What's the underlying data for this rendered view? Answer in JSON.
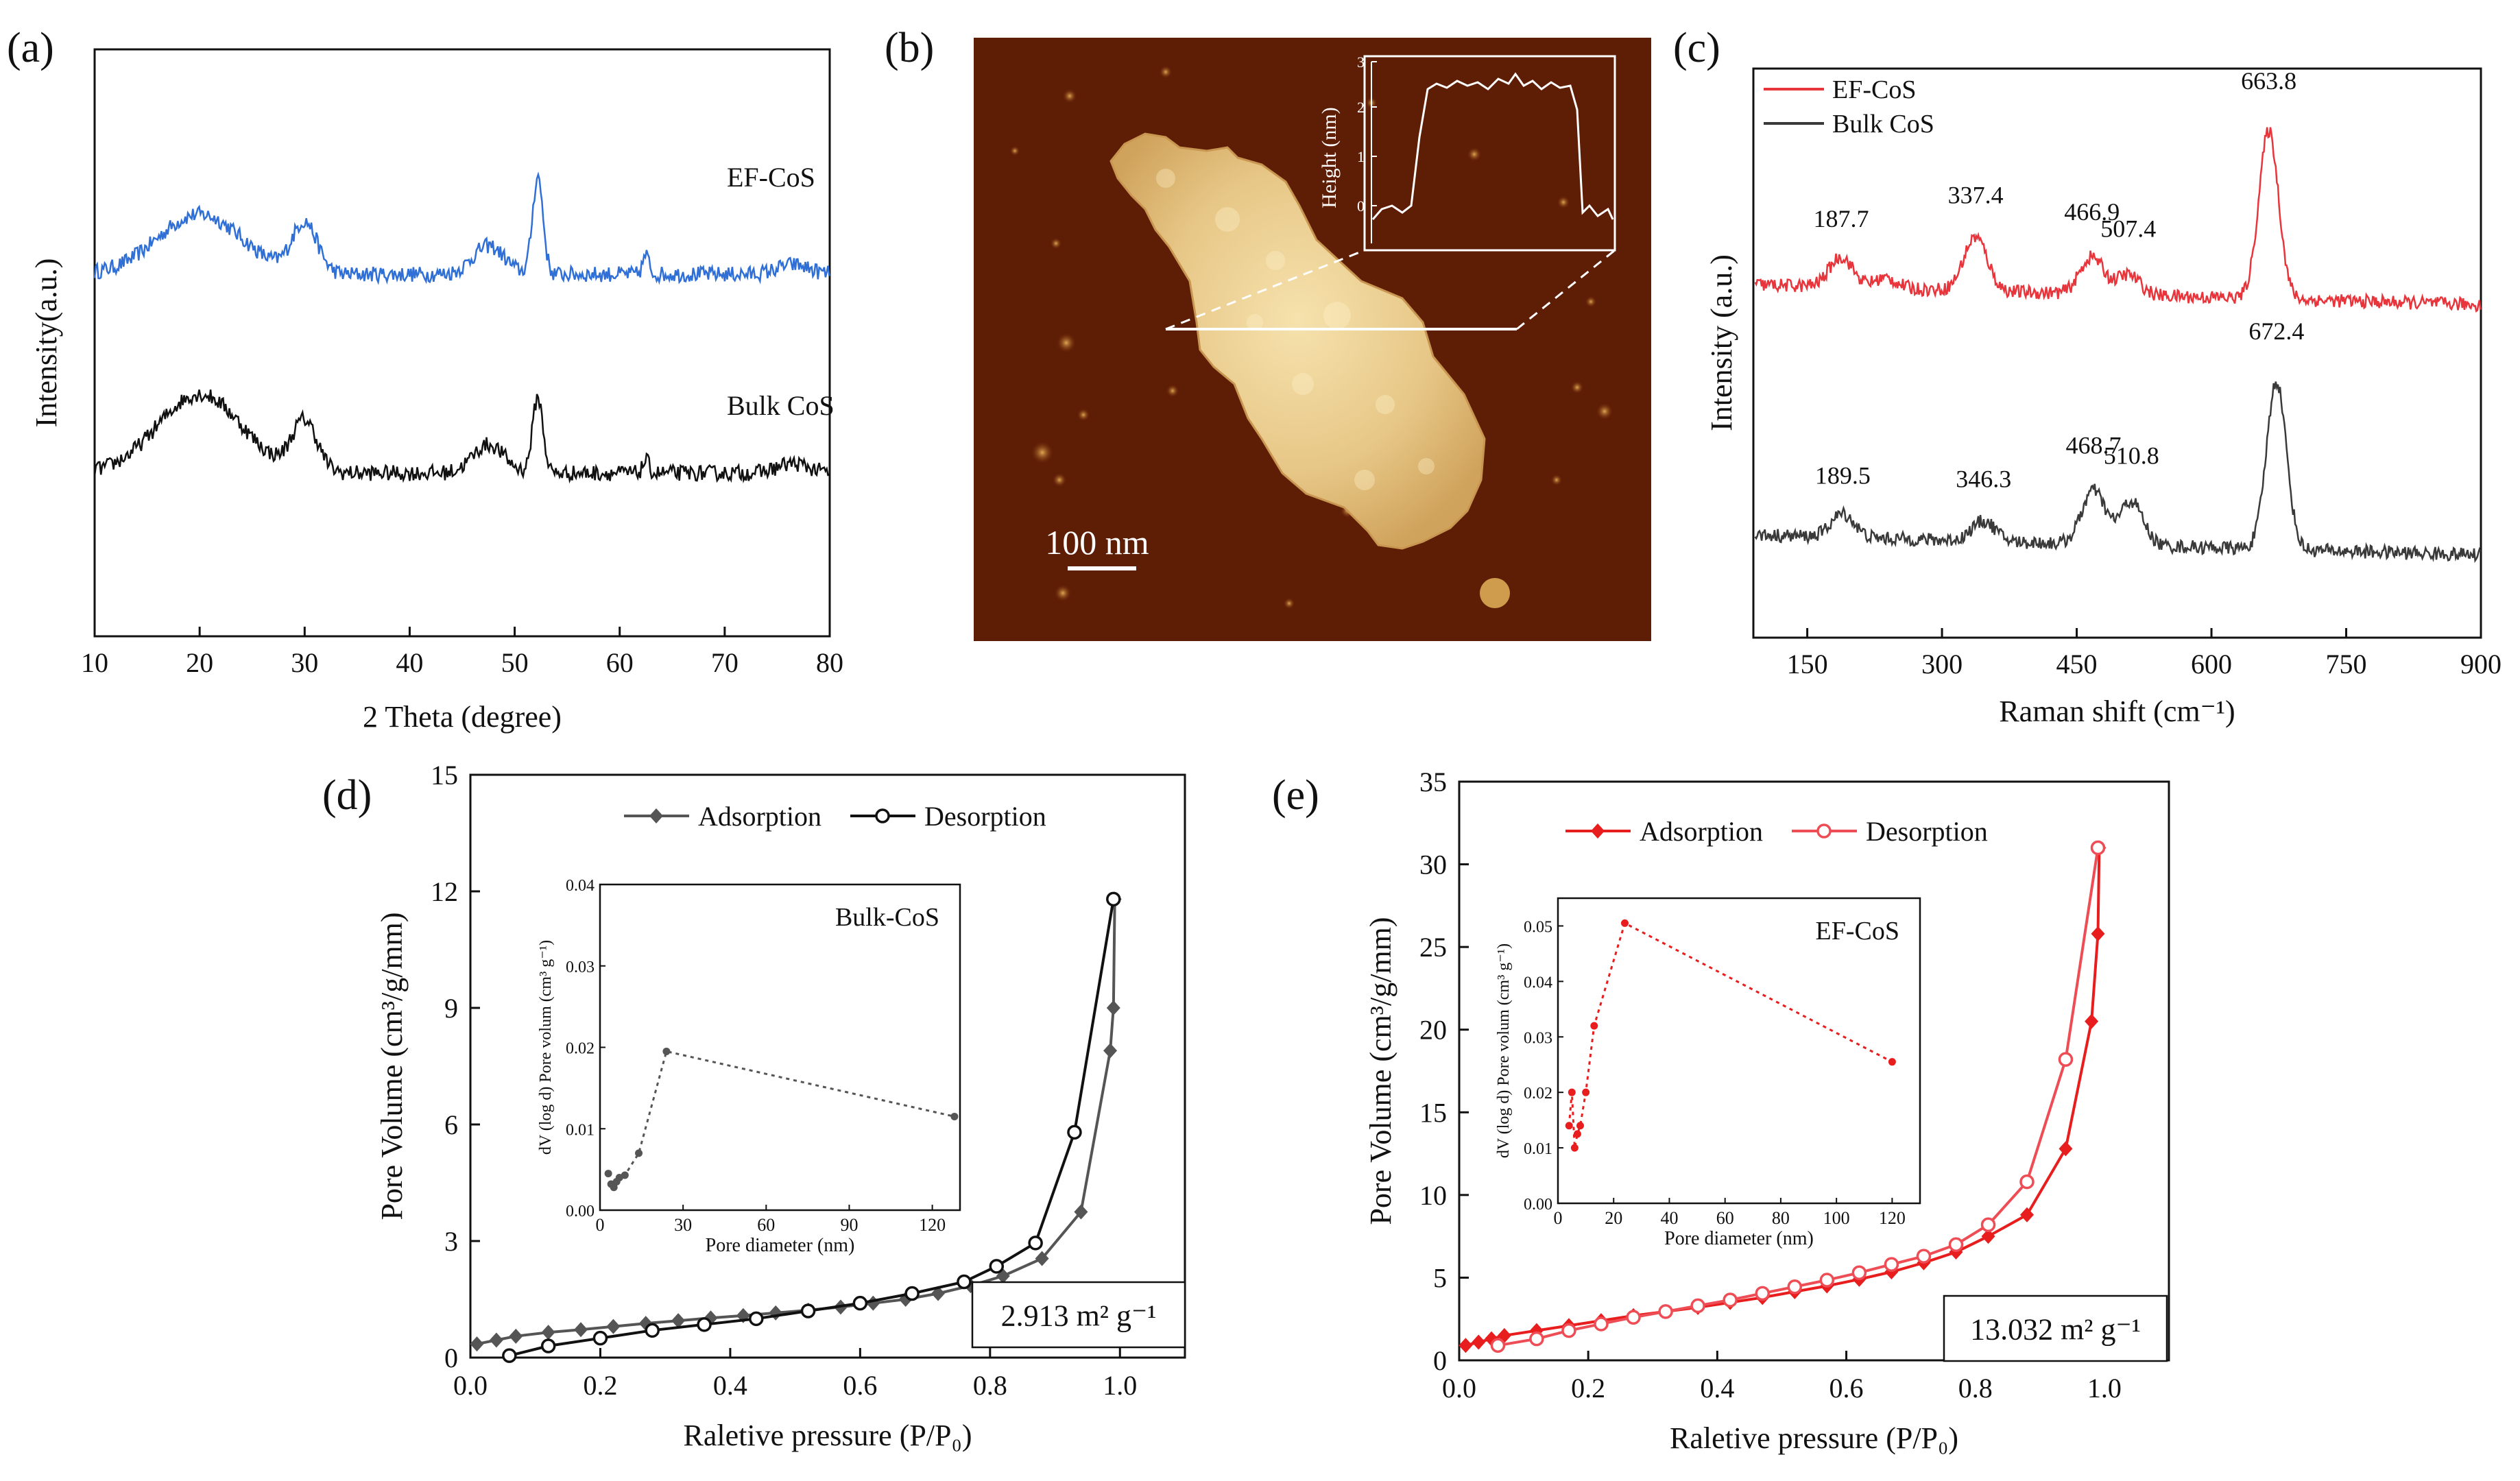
{
  "panels": {
    "a": {
      "label": "(a)"
    },
    "b": {
      "label": "(b)",
      "scale_bar": "100 nm",
      "inset_ylabel": "Height (nm)",
      "inset_ticks": [
        "0",
        "1",
        "2",
        "3"
      ]
    },
    "c": {
      "label": "(c)"
    },
    "d": {
      "label": "(d)",
      "bet": "2.913 m² g⁻¹"
    },
    "e": {
      "label": "(e)",
      "bet": "13.032 m² g⁻¹"
    }
  },
  "colors": {
    "blue": "#2f6fd6",
    "black": "#111111",
    "red": "#e8353c",
    "dark": "#3a3a3a",
    "gray": "#555555",
    "bright_red": "#e81d1d",
    "pink": "#ee4d55"
  },
  "chart_data": [
    {
      "id": "a",
      "type": "line",
      "title": "",
      "xlabel": "2 Theta (degree)",
      "ylabel": "Intensity(a.u.)",
      "xlim": [
        10,
        80
      ],
      "xticks": [
        10,
        20,
        30,
        40,
        50,
        60,
        70,
        80
      ],
      "series": [
        {
          "name": "EF-CoS",
          "color": "#2f6fd6",
          "offset": 1.0,
          "peaks": [
            [
              20,
              0.38,
              4
            ],
            [
              30,
              0.32,
              1.2
            ],
            [
              47.5,
              0.18,
              1.5
            ],
            [
              52.2,
              0.62,
              0.5
            ],
            [
              62.5,
              0.12,
              0.3
            ],
            [
              76.5,
              0.06,
              1.5
            ]
          ]
        },
        {
          "name": "Bulk CoS",
          "color": "#111111",
          "offset": 0.0,
          "peaks": [
            [
              20,
              0.5,
              4
            ],
            [
              30,
              0.32,
              1.2
            ],
            [
              47.5,
              0.18,
              1.5
            ],
            [
              52.2,
              0.48,
              0.5
            ],
            [
              62.5,
              0.08,
              0.3
            ],
            [
              76.5,
              0.06,
              1.5
            ]
          ]
        }
      ]
    },
    {
      "id": "c",
      "type": "line",
      "title": "",
      "xlabel": "Raman shift (cm⁻¹)",
      "ylabel": "Intensity (a.u.)",
      "xlim": [
        90,
        900
      ],
      "xticks": [
        150,
        300,
        450,
        600,
        750,
        900
      ],
      "legend": [
        "EF-CoS",
        "Bulk CoS"
      ],
      "series": [
        {
          "name": "EF-CoS",
          "color": "#e8353c",
          "peaks": [
            [
              187.7,
              0.18
            ],
            [
              237,
              0.06
            ],
            [
              337.4,
              0.32
            ],
            [
              466.9,
              0.22
            ],
            [
              507.4,
              0.12
            ],
            [
              663.8,
              1.0
            ]
          ],
          "labels": [
            {
              "x": 187.7,
              "text": "187.7"
            },
            {
              "x": 337.4,
              "text": "337.4"
            },
            {
              "x": 466.9,
              "text": "466.9"
            },
            {
              "x": 507.4,
              "text": "507.4"
            },
            {
              "x": 663.8,
              "text": "663.8"
            }
          ]
        },
        {
          "name": "Bulk CoS",
          "color": "#3a3a3a",
          "peaks": [
            [
              189.5,
              0.14
            ],
            [
              346.3,
              0.12
            ],
            [
              468.7,
              0.32
            ],
            [
              510.8,
              0.26
            ],
            [
              672.4,
              1.0
            ]
          ],
          "labels": [
            {
              "x": 189.5,
              "text": "189.5"
            },
            {
              "x": 346.3,
              "text": "346.3"
            },
            {
              "x": 468.7,
              "text": "468.7"
            },
            {
              "x": 510.8,
              "text": "510.8"
            },
            {
              "x": 672.4,
              "text": "672.4"
            }
          ]
        }
      ]
    },
    {
      "id": "d",
      "type": "line",
      "title": "",
      "xlabel": "Raletive pressure (P/P₀)",
      "ylabel": "Pore Volume (cm³/g/mm)",
      "xlim": [
        0,
        1.1
      ],
      "ylim": [
        0,
        15
      ],
      "xticks": [
        0.0,
        0.2,
        0.4,
        0.6,
        0.8,
        1.0
      ],
      "yticks": [
        0,
        3,
        6,
        9,
        12,
        15
      ],
      "series": [
        {
          "name": "Adsorption",
          "color": "#555555",
          "marker": "diamond",
          "x": [
            0.01,
            0.04,
            0.07,
            0.12,
            0.17,
            0.22,
            0.27,
            0.32,
            0.37,
            0.42,
            0.47,
            0.52,
            0.57,
            0.62,
            0.67,
            0.72,
            0.77,
            0.82,
            0.88,
            0.94,
            0.985,
            0.99,
            0.992
          ],
          "y": [
            0.35,
            0.45,
            0.55,
            0.65,
            0.72,
            0.8,
            0.88,
            0.95,
            1.02,
            1.08,
            1.15,
            1.22,
            1.3,
            1.4,
            1.5,
            1.65,
            1.85,
            2.1,
            2.55,
            3.75,
            7.9,
            9.0,
            11.8
          ]
        },
        {
          "name": "Desorption",
          "color": "#111111",
          "marker": "circle",
          "x": [
            0.06,
            0.12,
            0.2,
            0.28,
            0.36,
            0.44,
            0.52,
            0.6,
            0.68,
            0.76,
            0.81,
            0.87,
            0.93,
            0.99
          ],
          "y": [
            0.05,
            0.3,
            0.5,
            0.7,
            0.85,
            1.0,
            1.2,
            1.4,
            1.65,
            1.95,
            2.35,
            2.95,
            5.8,
            11.8
          ]
        }
      ],
      "inset": {
        "title": "Bulk-CoS",
        "xlabel": "Pore diameter (nm)",
        "ylabel": "dV (log d) Pore volum (cm³ g⁻¹)",
        "xlim": [
          0,
          130
        ],
        "ylim": [
          0,
          0.04
        ],
        "xticks": [
          0,
          30,
          60,
          90,
          120
        ],
        "yticks": [
          0.0,
          0.01,
          0.02,
          0.03,
          0.04
        ],
        "x": [
          3,
          4,
          5,
          6,
          7,
          9,
          14,
          24,
          128
        ],
        "y": [
          0.0045,
          0.0032,
          0.0028,
          0.0035,
          0.004,
          0.0043,
          0.007,
          0.0195,
          0.0115
        ]
      }
    },
    {
      "id": "e",
      "type": "line",
      "title": "",
      "xlabel": "Raletive pressure (P/P₀)",
      "ylabel": "Pore Volume (cm³/g/mm)",
      "xlim": [
        0,
        1.1
      ],
      "ylim": [
        0,
        35
      ],
      "xticks": [
        0.0,
        0.2,
        0.4,
        0.6,
        0.8,
        1.0
      ],
      "yticks": [
        0,
        5,
        10,
        15,
        20,
        25,
        30,
        35
      ],
      "series": [
        {
          "name": "Adsorption",
          "color": "#e81d1d",
          "marker": "diamond",
          "x": [
            0.01,
            0.03,
            0.05,
            0.07,
            0.12,
            0.17,
            0.22,
            0.27,
            0.32,
            0.37,
            0.42,
            0.47,
            0.52,
            0.57,
            0.62,
            0.67,
            0.72,
            0.77,
            0.82,
            0.88,
            0.94,
            0.98,
            0.99,
            0.992
          ],
          "y": [
            0.9,
            1.1,
            1.3,
            1.5,
            1.8,
            2.1,
            2.4,
            2.7,
            2.95,
            3.2,
            3.5,
            3.8,
            4.15,
            4.5,
            4.9,
            5.35,
            5.9,
            6.55,
            7.5,
            8.8,
            12.8,
            20.5,
            25.8,
            31.0
          ]
        },
        {
          "name": "Desorption",
          "color": "#ee4d55",
          "marker": "circle",
          "x": [
            0.06,
            0.12,
            0.17,
            0.22,
            0.27,
            0.32,
            0.37,
            0.42,
            0.47,
            0.52,
            0.57,
            0.62,
            0.67,
            0.72,
            0.77,
            0.82,
            0.88,
            0.94,
            0.99
          ],
          "y": [
            0.9,
            1.3,
            1.8,
            2.2,
            2.6,
            2.95,
            3.3,
            3.65,
            4.05,
            4.45,
            4.85,
            5.3,
            5.8,
            6.3,
            7.0,
            8.2,
            10.8,
            18.2,
            31.0
          ]
        }
      ],
      "inset": {
        "title": "EF-CoS",
        "xlabel": "Pore diameter (nm)",
        "ylabel": "dV (log d) Pore volum (cm³ g⁻¹)",
        "xlim": [
          0,
          130
        ],
        "ylim": [
          0,
          0.055
        ],
        "xticks": [
          0,
          20,
          40,
          60,
          80,
          100,
          120
        ],
        "yticks": [
          0.0,
          0.01,
          0.02,
          0.03,
          0.04,
          0.05
        ],
        "x": [
          4,
          5,
          6,
          7,
          8,
          10,
          13,
          24,
          120
        ],
        "y": [
          0.014,
          0.02,
          0.01,
          0.0125,
          0.014,
          0.02,
          0.032,
          0.0505,
          0.0255
        ]
      }
    }
  ]
}
